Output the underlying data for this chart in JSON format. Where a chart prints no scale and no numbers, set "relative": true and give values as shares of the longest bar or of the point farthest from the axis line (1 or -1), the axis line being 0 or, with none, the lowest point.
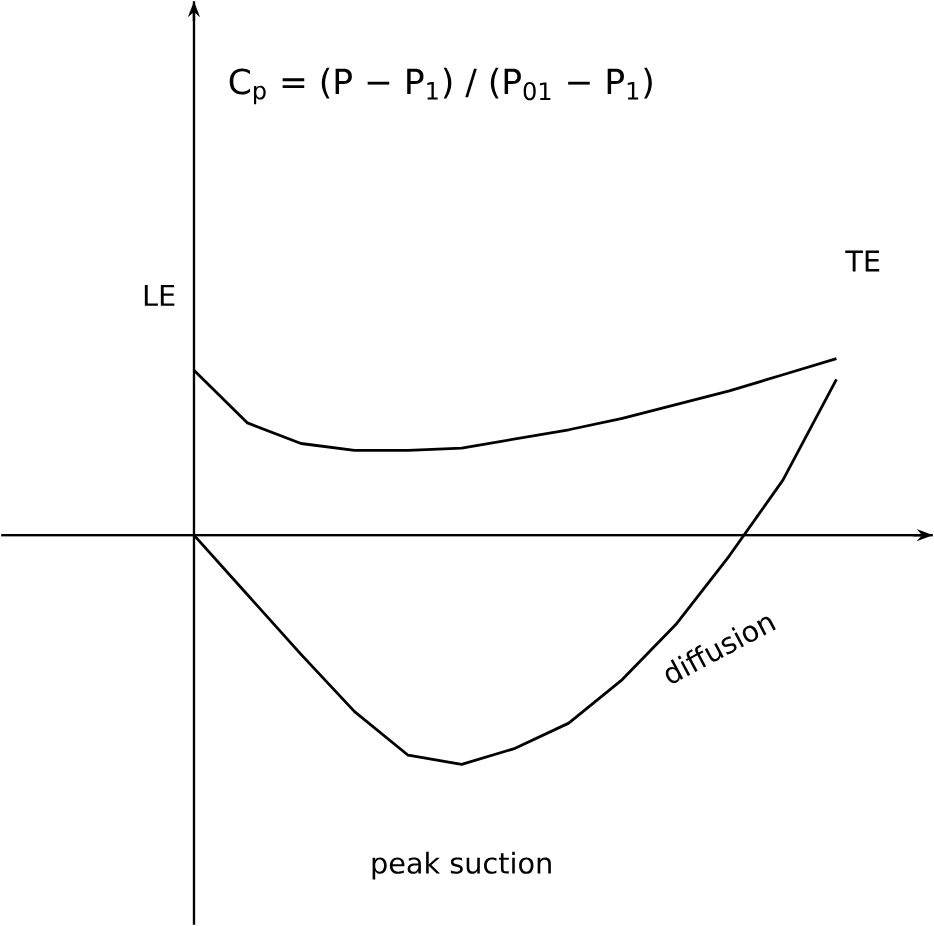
{
  "chart_data": {
    "type": "line",
    "relative": true,
    "ylabel": "C$_{p}$ = (P − P$_{1}$) / (P$_{01}$ − P$_{1}$)",
    "categories": [
      null,
      null,
      null,
      null,
      null,
      null,
      null,
      null,
      null,
      null,
      null,
      null,
      null
    ],
    "series": [
      {
        "color": "#000000",
        "values": [
          0.72,
          0.49,
          0.4,
          0.37,
          0.37,
          0.38,
          0.42,
          0.46,
          0.51,
          0.57,
          0.63,
          0.7,
          0.77
        ]
      },
      {
        "color": "#000000",
        "values": [
          0,
          -0.26,
          -0.52,
          -0.77,
          -0.96,
          -1,
          -0.93,
          -0.82,
          -0.63,
          -0.39,
          -0.09,
          0.24,
          0.68
        ]
      }
    ],
    "marker": "none",
    "line_style": "solid",
    "annotations": [
      "LE",
      "TE",
      "diffusion",
      "peak suction"
    ]
  }
}
